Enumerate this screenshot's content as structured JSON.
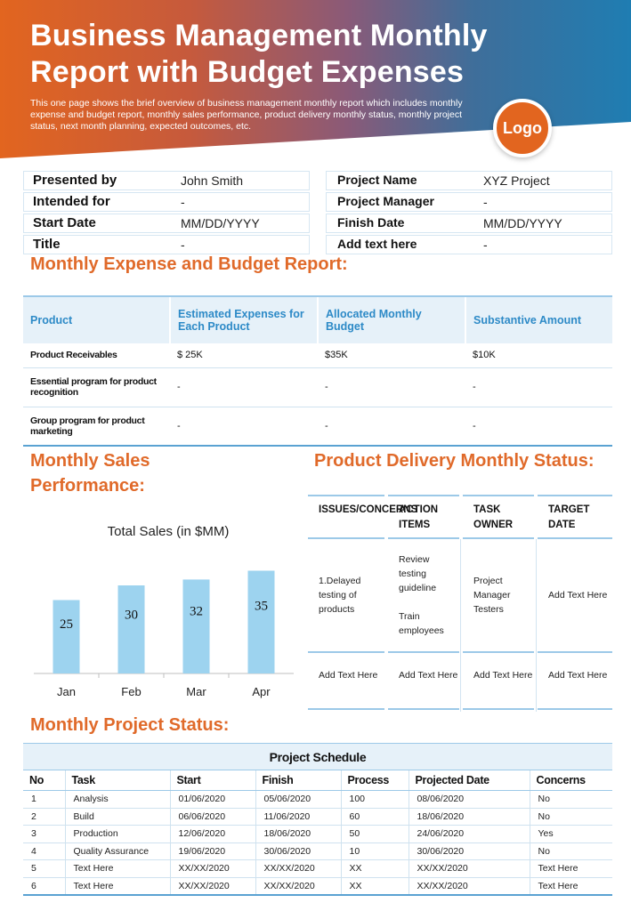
{
  "header": {
    "title": "Business Management Monthly Report with Budget Expenses",
    "subtitle": "This one page shows the brief overview of business management monthly report which includes monthly expense and budget report, monthly sales performance, product delivery monthly status, monthly project status, next month planning, expected outcomes, etc.",
    "logo_text": "Logo"
  },
  "info": {
    "left": [
      {
        "label": "Presented by",
        "value": "John Smith"
      },
      {
        "label": "Intended for",
        "value": "-"
      },
      {
        "label": "Start Date",
        "value": "MM/DD/YYYY"
      },
      {
        "label": "Title",
        "value": "-"
      }
    ],
    "right": [
      {
        "label": "Project Name",
        "value": "XYZ Project"
      },
      {
        "label": "Project Manager",
        "value": "-"
      },
      {
        "label": "Finish Date",
        "value": "MM/DD/YYYY"
      },
      {
        "label": "Add text here",
        "value": "-"
      }
    ]
  },
  "expense": {
    "heading": "Monthly Expense and Budget Report:",
    "columns": [
      "Product",
      "Estimated Expenses for Each Product",
      "Allocated Monthly Budget",
      "Substantive Amount"
    ],
    "rows": [
      [
        "Product Receivables",
        "$ 25K",
        "$35K",
        "$10K"
      ],
      [
        "Essential program for product recognition",
        "-",
        "-",
        "-"
      ],
      [
        "Group program for product marketing",
        "-",
        "-",
        "-"
      ]
    ]
  },
  "sales": {
    "heading": "Monthly Sales Performance:"
  },
  "chart_data": {
    "type": "bar",
    "title": "Total Sales (in $MM)",
    "categories": [
      "Jan",
      "Feb",
      "Mar",
      "Apr"
    ],
    "values": [
      25,
      30,
      32,
      35
    ],
    "ylim": [
      0,
      40
    ],
    "grid": false,
    "bar_color": "#9dd3ef"
  },
  "delivery": {
    "heading": "Product Delivery Monthly Status:",
    "columns": [
      {
        "header": "ISSUES/CONCERNS",
        "body": "1.Delayed testing of products",
        "footer": "Add Text Here"
      },
      {
        "header": "ACTION ITEMS",
        "body": "Review testing guideline\n\nTrain employees",
        "footer": "Add Text Here"
      },
      {
        "header": "TASK OWNER",
        "body": "Project Manager Testers",
        "footer": "Add Text Here"
      },
      {
        "header": "TARGET DATE",
        "body": "Add Text Here",
        "footer": "Add Text Here"
      }
    ]
  },
  "project": {
    "heading": "Monthly Project Status:",
    "table_title": "Project Schedule",
    "columns": [
      "No",
      "Task",
      "Start",
      "Finish",
      "Process",
      "Projected Date",
      "Concerns"
    ],
    "rows": [
      [
        "1",
        "Analysis",
        "01/06/2020",
        "05/06/2020",
        "100",
        "08/06/2020",
        "No"
      ],
      [
        "2",
        "Build",
        "06/06/2020",
        "11/06/2020",
        "60",
        "18/06/2020",
        "No"
      ],
      [
        "3",
        "Production",
        "12/06/2020",
        "18/06/2020",
        "50",
        "24/06/2020",
        "Yes"
      ],
      [
        "4",
        "Quality Assurance",
        "19/06/2020",
        "30/06/2020",
        "10",
        "30/06/2020",
        "No"
      ],
      [
        "5",
        "Text Here",
        "XX/XX/2020",
        "XX/XX/2020",
        "XX",
        "XX/XX/2020",
        "Text Here"
      ],
      [
        "6",
        "Text Here",
        "XX/XX/2020",
        "XX/XX/2020",
        "XX",
        "XX/XX/2020",
        "Text Here"
      ]
    ]
  },
  "colors": {
    "accent": "#e06a2a",
    "header_blue": "#2d8ac7",
    "rule_blue": "#9cc9e8",
    "light_fill": "#e6f1f9"
  }
}
